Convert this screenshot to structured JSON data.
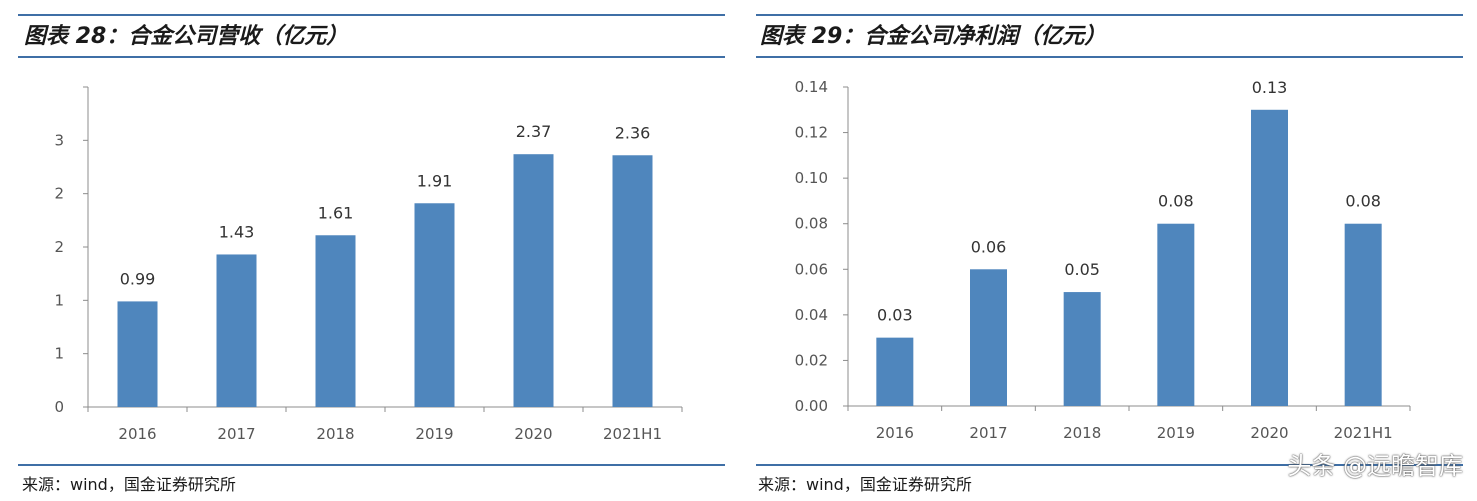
{
  "charts": [
    {
      "title": "图表 28：合金公司营收（亿元）",
      "source": "来源：wind，国金证券研究所"
    },
    {
      "title": "图表 29：合金公司净利润（亿元）",
      "source": "来源：wind，国金证券研究所"
    }
  ],
  "watermark": "头条 @远瞻智库",
  "colors": {
    "bar": "#4f86bd",
    "rule": "#3f6fa6",
    "axis": "#8c8c8c"
  },
  "chart_data": [
    {
      "type": "bar",
      "title": "图表 28：合金公司营收（亿元）",
      "categories": [
        "2016",
        "2017",
        "2018",
        "2019",
        "2020",
        "2021H1"
      ],
      "values": [
        0.99,
        1.43,
        1.61,
        1.91,
        2.37,
        2.36
      ],
      "value_labels": [
        "0.99",
        "1.43",
        "1.61",
        "1.91",
        "2.37",
        "2.36"
      ],
      "yticks": [
        0,
        0.5,
        1,
        1.5,
        2,
        2.5,
        3
      ],
      "ytick_labels": [
        "0",
        "1",
        "1",
        "2",
        "2",
        "3"
      ],
      "ylim": [
        0,
        2.5
      ],
      "grid": false,
      "xlabel": "",
      "ylabel": ""
    },
    {
      "type": "bar",
      "title": "图表 29：合金公司净利润（亿元）",
      "categories": [
        "2016",
        "2017",
        "2018",
        "2019",
        "2020",
        "2021H1"
      ],
      "values": [
        0.03,
        0.06,
        0.05,
        0.08,
        0.13,
        0.08
      ],
      "value_labels": [
        "0.03",
        "0.06",
        "0.05",
        "0.08",
        "0.13",
        "0.08"
      ],
      "yticks": [
        0,
        0.02,
        0.04,
        0.06,
        0.08,
        0.1,
        0.12,
        0.14
      ],
      "ytick_labels": [
        "0.00",
        "0.02",
        "0.04",
        "0.06",
        "0.08",
        "0.10",
        "0.12",
        "0.14"
      ],
      "ylim": [
        0,
        0.14
      ],
      "grid": false,
      "xlabel": "",
      "ylabel": ""
    }
  ]
}
